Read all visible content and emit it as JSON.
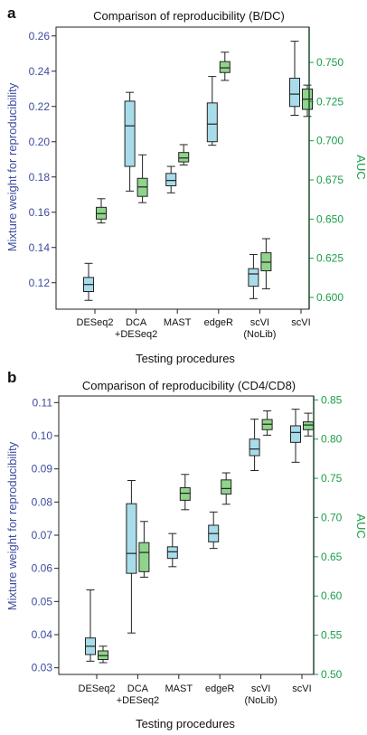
{
  "colors": {
    "left_axis": "#3d4ba0",
    "right_axis": "#1b9e48",
    "box_left_fill": "#a8dcea",
    "box_right_fill": "#8fd48a",
    "line": "#222222"
  },
  "chart_data": [
    {
      "type": "box",
      "panel_label": "a",
      "title": "Comparison of reproducibility (B/DC)",
      "xlabel": "Testing procedures",
      "ylabel": "Mixture weight for reproducibility",
      "y2label": "AUC",
      "grid": false,
      "legend": "none",
      "categories": [
        [
          "DESeq2"
        ],
        [
          "DCA",
          "+DESeq2"
        ],
        [
          "MAST"
        ],
        [
          "edgeR"
        ],
        [
          "scVI",
          "(NoLib)"
        ],
        [
          "scVI"
        ]
      ],
      "ylim": [
        0.105,
        0.265
      ],
      "yticks": [
        0.12,
        0.14,
        0.16,
        0.18,
        0.2,
        0.22,
        0.24,
        0.26
      ],
      "ytick_labels": [
        "0.12",
        "0.14",
        "0.16",
        "0.18",
        "0.20",
        "0.22",
        "0.24",
        "0.26"
      ],
      "y2lim": [
        0.5925,
        0.7725
      ],
      "y2ticks": [
        0.6,
        0.625,
        0.65,
        0.675,
        0.7,
        0.725,
        0.75
      ],
      "y2tick_labels": [
        "0.600",
        "0.625",
        "0.650",
        "0.675",
        "0.700",
        "0.725",
        "0.750"
      ],
      "series": [
        {
          "axis": "left",
          "boxes": [
            {
              "whislo": 0.11,
              "q1": 0.115,
              "med": 0.119,
              "q3": 0.123,
              "whishi": 0.131
            },
            {
              "whislo": 0.172,
              "q1": 0.186,
              "med": 0.209,
              "q3": 0.223,
              "whishi": 0.228
            },
            {
              "whislo": 0.171,
              "q1": 0.175,
              "med": 0.178,
              "q3": 0.182,
              "whishi": 0.186
            },
            {
              "whislo": 0.198,
              "q1": 0.2,
              "med": 0.21,
              "q3": 0.222,
              "whishi": 0.237
            },
            {
              "whislo": 0.111,
              "q1": 0.118,
              "med": 0.125,
              "q3": 0.128,
              "whishi": 0.136
            },
            {
              "whislo": 0.215,
              "q1": 0.22,
              "med": 0.227,
              "q3": 0.236,
              "whishi": 0.257
            }
          ]
        },
        {
          "axis": "right",
          "boxes": [
            {
              "whislo": 0.6475,
              "q1": 0.65,
              "med": 0.6535,
              "q3": 0.6575,
              "whishi": 0.663
            },
            {
              "whislo": 0.6605,
              "q1": 0.6645,
              "med": 0.6705,
              "q3": 0.676,
              "whishi": 0.691
            },
            {
              "whislo": 0.6845,
              "q1": 0.6865,
              "med": 0.689,
              "q3": 0.6925,
              "whishi": 0.6975
            },
            {
              "whislo": 0.7385,
              "q1": 0.7435,
              "med": 0.7465,
              "q3": 0.7505,
              "whishi": 0.7565
            },
            {
              "whislo": 0.6055,
              "q1": 0.617,
              "med": 0.6225,
              "q3": 0.6285,
              "whishi": 0.6375
            },
            {
              "whislo": 0.7155,
              "q1": 0.72,
              "med": 0.7265,
              "q3": 0.733,
              "whishi": 0.7355
            }
          ]
        }
      ]
    },
    {
      "type": "box",
      "panel_label": "b",
      "title": "Comparison of reproducibility (CD4/CD8)",
      "xlabel": "Testing procedures",
      "ylabel": "Mixture weight for reproducibility",
      "y2label": "AUC",
      "grid": false,
      "legend": "none",
      "categories": [
        [
          "DESeq2"
        ],
        [
          "DCA",
          "+DESeq2"
        ],
        [
          "MAST"
        ],
        [
          "edgeR"
        ],
        [
          "scVI",
          "(NoLib)"
        ],
        [
          "scVI"
        ]
      ],
      "ylim": [
        0.028,
        0.112
      ],
      "yticks": [
        0.03,
        0.04,
        0.05,
        0.06,
        0.07,
        0.08,
        0.09,
        0.1,
        0.11
      ],
      "ytick_labels": [
        "0.03",
        "0.04",
        "0.05",
        "0.06",
        "0.07",
        "0.08",
        "0.09",
        "0.10",
        "0.11"
      ],
      "y2lim": [
        0.5,
        0.855
      ],
      "y2ticks": [
        0.5,
        0.55,
        0.6,
        0.65,
        0.7,
        0.75,
        0.8,
        0.85
      ],
      "y2tick_labels": [
        "0.50",
        "0.55",
        "0.60",
        "0.65",
        "0.70",
        "0.75",
        "0.80",
        "0.85"
      ],
      "series": [
        {
          "axis": "left",
          "boxes": [
            {
              "whislo": 0.032,
              "q1": 0.034,
              "med": 0.0365,
              "q3": 0.039,
              "whishi": 0.0535
            },
            {
              "whislo": 0.0405,
              "q1": 0.0585,
              "med": 0.0645,
              "q3": 0.0795,
              "whishi": 0.0865
            },
            {
              "whislo": 0.0605,
              "q1": 0.063,
              "med": 0.065,
              "q3": 0.0665,
              "whishi": 0.0705
            },
            {
              "whislo": 0.066,
              "q1": 0.068,
              "med": 0.0705,
              "q3": 0.073,
              "whishi": 0.077
            },
            {
              "whislo": 0.0895,
              "q1": 0.094,
              "med": 0.096,
              "q3": 0.099,
              "whishi": 0.105
            },
            {
              "whislo": 0.092,
              "q1": 0.098,
              "med": 0.101,
              "q3": 0.103,
              "whishi": 0.108
            }
          ]
        },
        {
          "axis": "right",
          "boxes": [
            {
              "whislo": 0.515,
              "q1": 0.519,
              "med": 0.524,
              "q3": 0.53,
              "whishi": 0.536
            },
            {
              "whislo": 0.624,
              "q1": 0.631,
              "med": 0.6555,
              "q3": 0.668,
              "whishi": 0.695
            },
            {
              "whislo": 0.71,
              "q1": 0.722,
              "med": 0.731,
              "q3": 0.738,
              "whishi": 0.755
            },
            {
              "whislo": 0.717,
              "q1": 0.73,
              "med": 0.737,
              "q3": 0.748,
              "whishi": 0.757
            },
            {
              "whislo": 0.805,
              "q1": 0.812,
              "med": 0.819,
              "q3": 0.825,
              "whishi": 0.836
            },
            {
              "whislo": 0.804,
              "q1": 0.812,
              "med": 0.818,
              "q3": 0.822,
              "whishi": 0.833
            }
          ]
        }
      ]
    }
  ]
}
